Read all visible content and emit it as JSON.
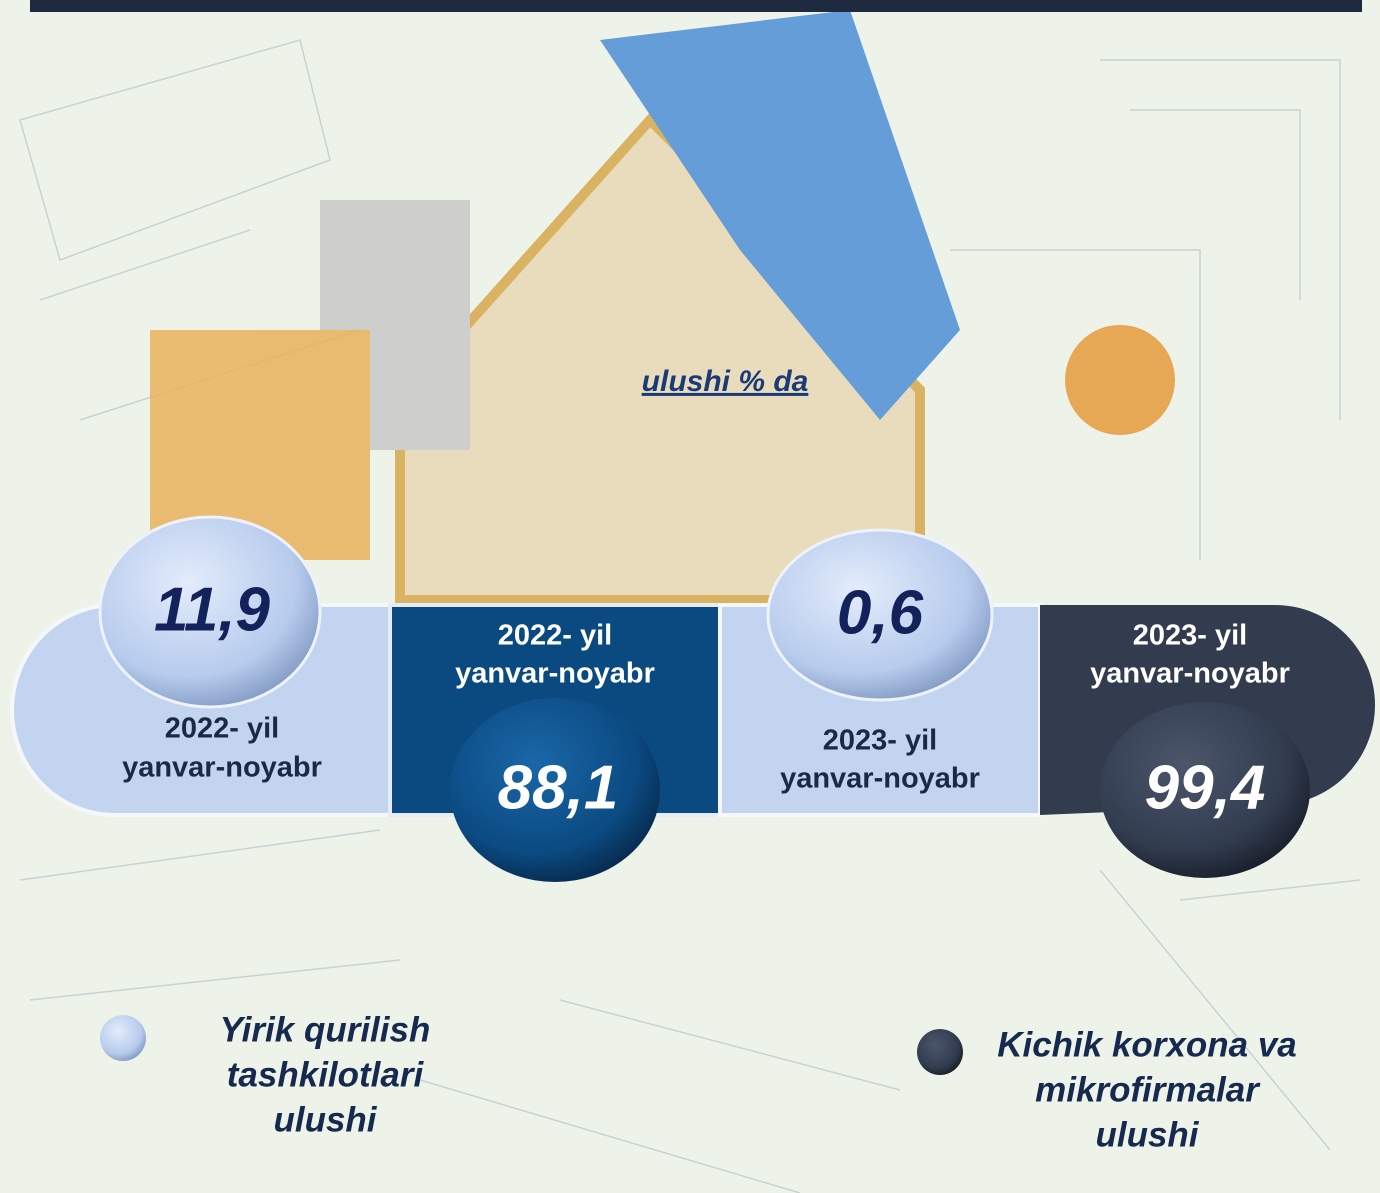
{
  "subtitle": "ulushi % da",
  "panels": [
    {
      "value": "11,9",
      "period": [
        "2022-  yil",
        "yanvar-noyabr"
      ]
    },
    {
      "value": "88,1",
      "period": [
        "2022- yil",
        "yanvar-noyabr"
      ]
    },
    {
      "value": "0,6",
      "period": [
        "2023- yil",
        "yanvar-noyabr"
      ]
    },
    {
      "value": "99,4",
      "period": [
        "2023-  yil",
        "yanvar-noyabr"
      ]
    }
  ],
  "legend": [
    {
      "label": [
        "Yirik qurilish",
        "tashkilotlari",
        "ulushi"
      ]
    },
    {
      "label": [
        "Kichik korxona va",
        "mikrofirmalar",
        "ulushi"
      ]
    }
  ]
}
